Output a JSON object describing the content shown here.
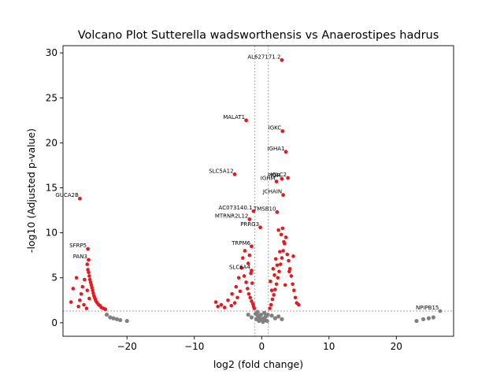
{
  "chart_data": {
    "type": "scatter",
    "title": "Volcano Plot Sutterella wadsworthensis vs Anaerostipes hadrus",
    "xlabel": "log2 (fold change)",
    "ylabel": "-log10 (Adjusted p-value)",
    "xlim": [
      -29.5,
      28.5
    ],
    "ylim": [
      -1.5,
      30.8
    ],
    "xticks": [
      -20,
      -10,
      0,
      10,
      20
    ],
    "yticks": [
      0,
      5,
      10,
      15,
      20,
      25,
      30
    ],
    "grid": false,
    "thresholds": {
      "vlines": [
        -1,
        1
      ],
      "hline": 1.3
    },
    "colors": {
      "significant": "#e8191e",
      "not_significant": "#808080",
      "threshold_line": "#808080"
    },
    "labeled_points": [
      {
        "label": "AL627171.2",
        "x": 3.0,
        "y": 29.2
      },
      {
        "label": "MALAT1",
        "x": -2.3,
        "y": 22.5
      },
      {
        "label": "IGKC",
        "x": 3.1,
        "y": 21.3
      },
      {
        "label": "IGHA1",
        "x": 3.6,
        "y": 19.0
      },
      {
        "label": "SLC5A12",
        "x": -4.0,
        "y": 16.5
      },
      {
        "label": "PIGR",
        "x": 3.0,
        "y": 16.0
      },
      {
        "label": "IGHM",
        "x": 2.2,
        "y": 15.7
      },
      {
        "label": "IGLC2",
        "x": 3.9,
        "y": 16.1
      },
      {
        "label": "JCHAIN",
        "x": 3.2,
        "y": 14.2
      },
      {
        "label": "GUCA2B",
        "x": -27.0,
        "y": 13.8
      },
      {
        "label": "AC073140.1",
        "x": -1.2,
        "y": 12.4
      },
      {
        "label": "TMSB10",
        "x": 2.3,
        "y": 12.3
      },
      {
        "label": "MTRNR2L12",
        "x": -1.8,
        "y": 11.5
      },
      {
        "label": "PRRG3",
        "x": -0.2,
        "y": 10.6
      },
      {
        "label": "SFRP5",
        "x": -25.8,
        "y": 8.2
      },
      {
        "label": "PAN3",
        "x": -25.7,
        "y": 7.0
      },
      {
        "label": "TRPM6",
        "x": -1.5,
        "y": 8.5
      },
      {
        "label": "SLC6A4",
        "x": -1.5,
        "y": 5.8
      },
      {
        "label": "NPIPB15",
        "x": 26.5,
        "y": 1.3
      }
    ],
    "significant_points": [
      [
        -25.9,
        6.5
      ],
      [
        -25.8,
        5.9
      ],
      [
        -25.7,
        5.6
      ],
      [
        -25.6,
        5.2
      ],
      [
        -25.5,
        4.8
      ],
      [
        -25.4,
        4.5
      ],
      [
        -25.3,
        4.2
      ],
      [
        -25.2,
        3.9
      ],
      [
        -25.1,
        3.6
      ],
      [
        -25.0,
        3.3
      ],
      [
        -24.9,
        3.0
      ],
      [
        -24.8,
        2.8
      ],
      [
        -24.7,
        2.6
      ],
      [
        -24.6,
        2.4
      ],
      [
        -24.4,
        2.2
      ],
      [
        -24.2,
        2.0
      ],
      [
        -24.0,
        1.9
      ],
      [
        -23.8,
        1.7
      ],
      [
        -23.5,
        1.6
      ],
      [
        -23.2,
        1.5
      ],
      [
        -26.6,
        4.0
      ],
      [
        -26.8,
        3.2
      ],
      [
        -27.0,
        2.5
      ],
      [
        -26.4,
        2.0
      ],
      [
        -26.0,
        1.6
      ],
      [
        -25.6,
        2.7
      ],
      [
        -25.9,
        3.6
      ],
      [
        -26.3,
        4.8
      ],
      [
        -27.5,
        5.0
      ],
      [
        -28.0,
        3.8
      ],
      [
        -27.2,
        1.8
      ],
      [
        -28.3,
        2.3
      ],
      [
        -2.6,
        5.2
      ],
      [
        -2.3,
        4.5
      ],
      [
        -2.1,
        3.8
      ],
      [
        -1.9,
        3.2
      ],
      [
        -1.7,
        2.8
      ],
      [
        -1.5,
        2.4
      ],
      [
        -1.3,
        2.1
      ],
      [
        -1.2,
        1.8
      ],
      [
        -1.1,
        1.6
      ],
      [
        -3.2,
        3.5
      ],
      [
        -3.6,
        2.8
      ],
      [
        -4.0,
        2.2
      ],
      [
        -4.5,
        1.9
      ],
      [
        -5.0,
        2.5
      ],
      [
        -5.5,
        1.7
      ],
      [
        -6.0,
        2.0
      ],
      [
        -6.5,
        1.8
      ],
      [
        -3.0,
        6.1
      ],
      [
        -2.8,
        7.2
      ],
      [
        -2.5,
        8.0
      ],
      [
        -2.0,
        6.6
      ],
      [
        -1.6,
        5.5
      ],
      [
        -1.4,
        4.4
      ],
      [
        -3.8,
        4.0
      ],
      [
        -4.4,
        3.2
      ],
      [
        -6.8,
        2.3
      ],
      [
        -3.4,
        5.0
      ],
      [
        -1.8,
        7.5
      ],
      [
        1.2,
        1.6
      ],
      [
        1.4,
        2.0
      ],
      [
        1.6,
        2.6
      ],
      [
        1.8,
        3.1
      ],
      [
        2.0,
        3.7
      ],
      [
        2.2,
        4.3
      ],
      [
        2.4,
        5.0
      ],
      [
        2.6,
        5.7
      ],
      [
        2.8,
        6.5
      ],
      [
        3.0,
        7.2
      ],
      [
        3.2,
        8.0
      ],
      [
        3.4,
        8.8
      ],
      [
        3.6,
        9.5
      ],
      [
        2.5,
        10.3
      ],
      [
        3.1,
        10.5
      ],
      [
        3.3,
        9.0
      ],
      [
        3.8,
        7.6
      ],
      [
        4.0,
        6.9
      ],
      [
        4.2,
        6.0
      ],
      [
        4.4,
        5.2
      ],
      [
        4.6,
        4.3
      ],
      [
        4.8,
        3.6
      ],
      [
        5.0,
        2.8
      ],
      [
        5.2,
        2.2
      ],
      [
        5.5,
        2.0
      ],
      [
        1.5,
        3.6
      ],
      [
        1.9,
        5.3
      ],
      [
        2.3,
        6.4
      ],
      [
        2.7,
        7.9
      ],
      [
        1.3,
        4.6
      ],
      [
        1.7,
        6.0
      ],
      [
        2.1,
        7.1
      ],
      [
        2.9,
        9.8
      ],
      [
        4.1,
        5.7
      ],
      [
        3.5,
        4.2
      ],
      [
        4.7,
        7.4
      ]
    ],
    "nonsignificant_points": [
      [
        -0.9,
        1.0
      ],
      [
        -0.6,
        0.8
      ],
      [
        -0.3,
        0.6
      ],
      [
        0.0,
        0.4
      ],
      [
        0.3,
        0.5
      ],
      [
        0.6,
        0.7
      ],
      [
        0.9,
        0.9
      ],
      [
        -0.8,
        0.4
      ],
      [
        -0.4,
        0.2
      ],
      [
        0.2,
        0.1
      ],
      [
        0.5,
        0.3
      ],
      [
        0.8,
        0.2
      ],
      [
        -1.5,
        0.6
      ],
      [
        -2.0,
        0.9
      ],
      [
        1.5,
        0.8
      ],
      [
        2.0,
        0.5
      ],
      [
        2.5,
        0.7
      ],
      [
        3.0,
        0.4
      ],
      [
        -0.1,
        0.9
      ],
      [
        0.4,
        1.1
      ],
      [
        -0.6,
        1.2
      ],
      [
        -23.0,
        0.9
      ],
      [
        -22.5,
        0.6
      ],
      [
        -22.0,
        0.5
      ],
      [
        -21.5,
        0.4
      ],
      [
        -21.0,
        0.3
      ],
      [
        -20.0,
        0.2
      ],
      [
        23.0,
        0.2
      ],
      [
        24.0,
        0.4
      ],
      [
        24.8,
        0.5
      ],
      [
        25.5,
        0.6
      ]
    ]
  }
}
